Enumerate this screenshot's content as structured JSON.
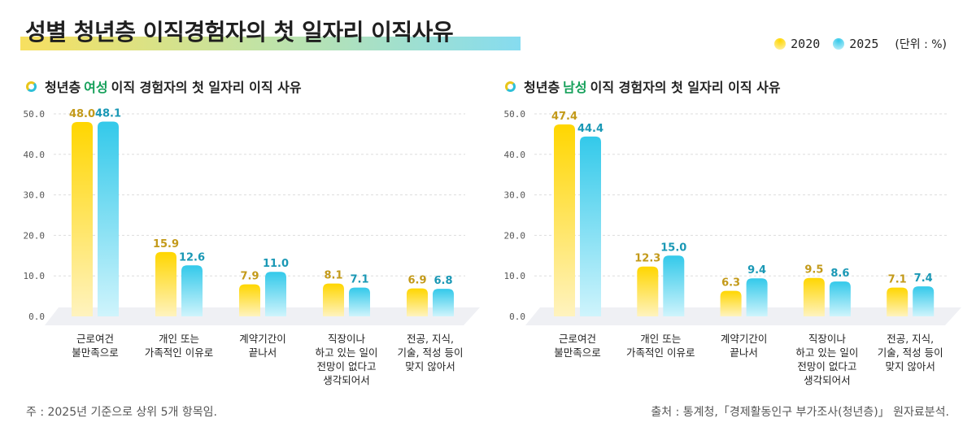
{
  "title": "성별 청년층 이직경험자의 첫 일자리 이직사유",
  "legend": {
    "items": [
      {
        "label": "2020",
        "color": "#ffd600"
      },
      {
        "label": "2025",
        "color": "#33c9ea"
      }
    ],
    "unit": "(단위 : %)"
  },
  "colors": {
    "y2020_top": "#ffd600",
    "y2020_bottom": "#fff3bf",
    "y2020_label": "#c39a1a",
    "y2025_top": "#33c9ea",
    "y2025_bottom": "#cff4fc",
    "y2025_label": "#1a98b5",
    "highlight": "#15a05a",
    "platform": "#eff0f4",
    "grid": "#dddddd"
  },
  "panels": [
    {
      "prefix": "청년층",
      "highlight": "여성",
      "suffix": "이직 경험자의 첫 일자리 이직 사유"
    },
    {
      "prefix": "청년층",
      "highlight": "남성",
      "suffix": "이직 경험자의 첫 일자리 이직 사유"
    }
  ],
  "chart_data": [
    {
      "type": "bar",
      "title": "청년층 여성 이직 경험자의 첫 일자리 이직 사유",
      "categories": [
        [
          "근로여건",
          "불만족으로"
        ],
        [
          "개인 또는",
          "가족적인 이유로"
        ],
        [
          "계약기간이",
          "끝나서"
        ],
        [
          "직장이나",
          "하고 있는 일이",
          "전망이 없다고",
          "생각되어서"
        ],
        [
          "전공, 지식,",
          "기술, 적성 등이",
          "맞지 않아서"
        ]
      ],
      "series": [
        {
          "name": "2020",
          "values": [
            48.0,
            15.9,
            7.9,
            8.1,
            6.9
          ]
        },
        {
          "name": "2025",
          "values": [
            48.1,
            12.6,
            11.0,
            7.1,
            6.8
          ]
        }
      ],
      "yticks": [
        "0.0",
        "10.0",
        "20.0",
        "30.0",
        "40.0",
        "50.0"
      ],
      "ylim": [
        0,
        50
      ],
      "grid": true,
      "xlabel": "",
      "ylabel": ""
    },
    {
      "type": "bar",
      "title": "청년층 남성 이직 경험자의 첫 일자리 이직 사유",
      "categories": [
        [
          "근로여건",
          "불만족으로"
        ],
        [
          "개인 또는",
          "가족적인 이유로"
        ],
        [
          "계약기간이",
          "끝나서"
        ],
        [
          "직장이나",
          "하고 있는 일이",
          "전망이 없다고",
          "생각되어서"
        ],
        [
          "전공, 지식,",
          "기술, 적성 등이",
          "맞지 않아서"
        ]
      ],
      "series": [
        {
          "name": "2020",
          "values": [
            47.4,
            12.3,
            6.3,
            9.5,
            7.1
          ]
        },
        {
          "name": "2025",
          "values": [
            44.4,
            15.0,
            9.4,
            8.6,
            7.4
          ]
        }
      ],
      "yticks": [
        "0.0",
        "10.0",
        "20.0",
        "30.0",
        "40.0",
        "50.0"
      ],
      "ylim": [
        0,
        50
      ],
      "grid": true,
      "xlabel": "",
      "ylabel": ""
    }
  ],
  "footer": {
    "note": "주 : 2025년 기준으로 상위 5개 항목임.",
    "source": "출처 : 통계청,「경제활동인구 부가조사(청년층)」 원자료분석."
  }
}
